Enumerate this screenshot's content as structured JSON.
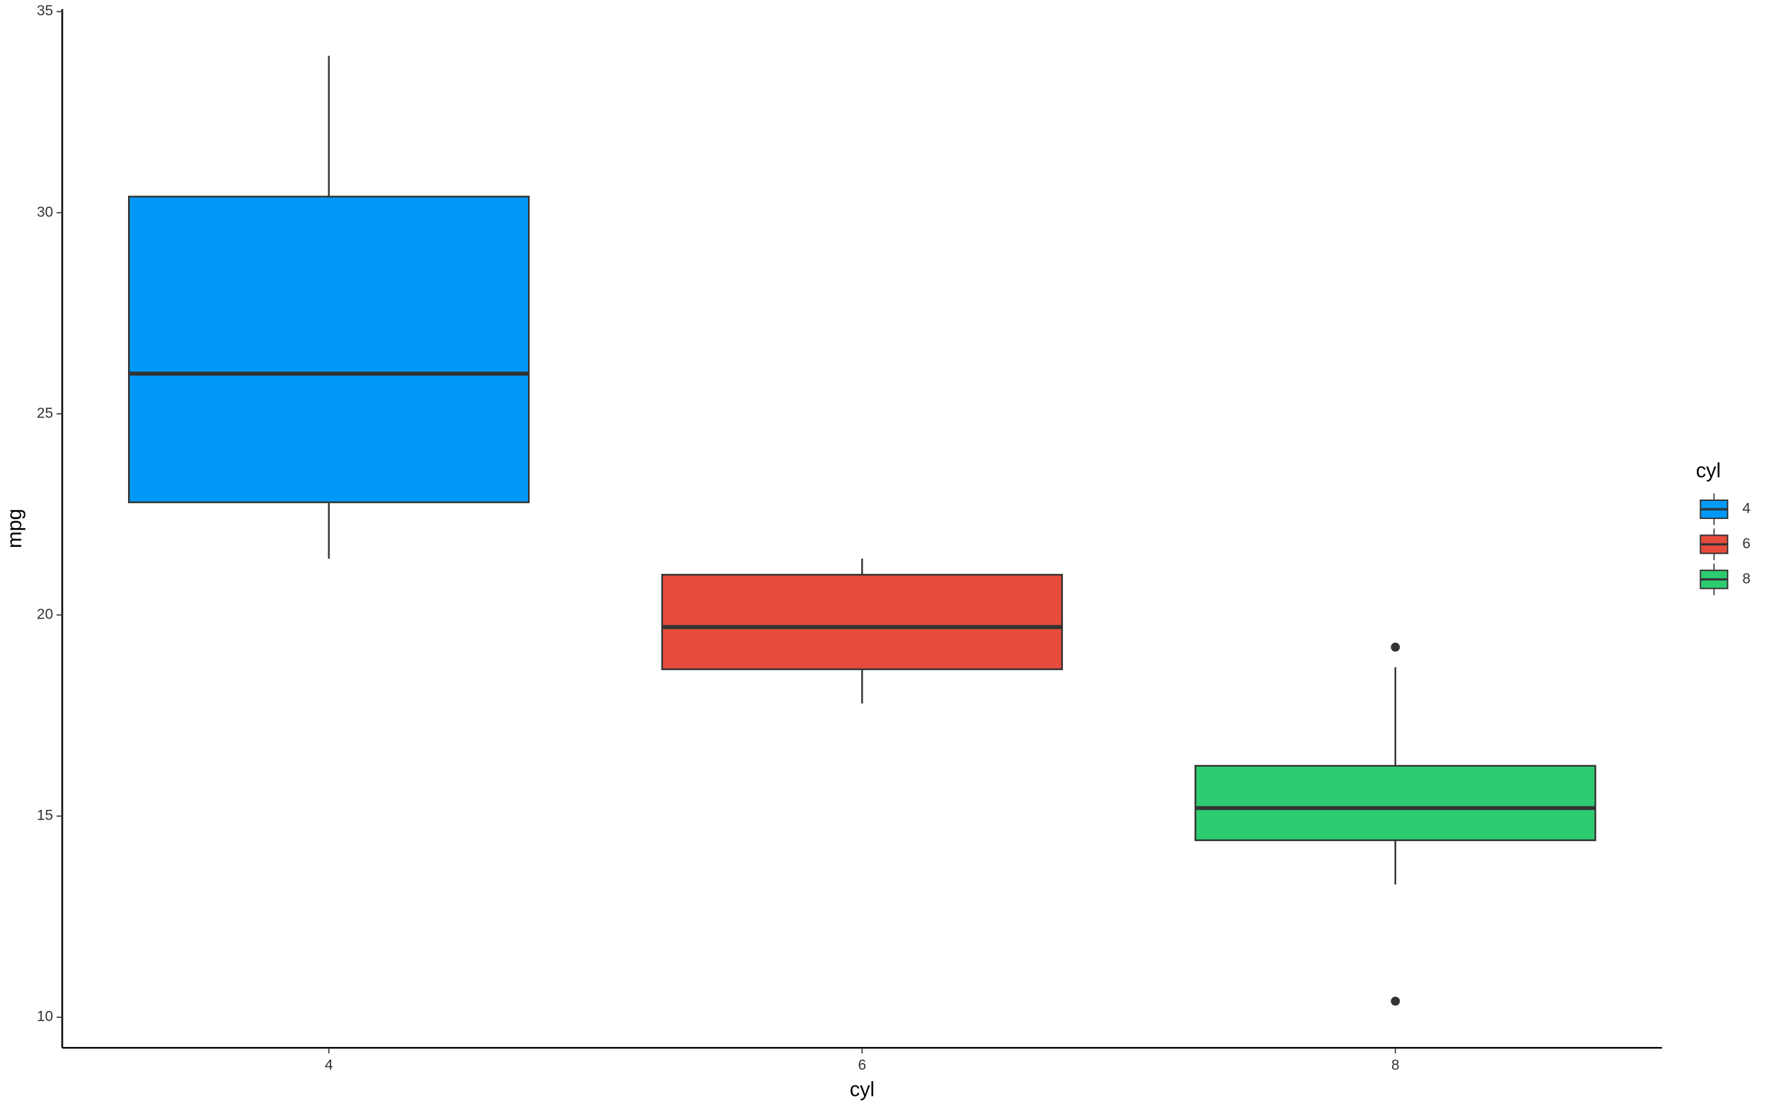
{
  "chart_data": {
    "type": "box",
    "x_label": "cyl",
    "y_label": "mpg",
    "categories": [
      "4",
      "6",
      "8"
    ],
    "legend_title": "cyl",
    "legend": "right",
    "series": [
      {
        "name": "4",
        "color": "#0099f8",
        "min": 21.4,
        "q1": 22.8,
        "median": 26.0,
        "q3": 30.4,
        "max": 33.9,
        "outliers": []
      },
      {
        "name": "6",
        "color": "#e64b3c",
        "min": 17.8,
        "q1": 18.65,
        "median": 19.7,
        "q3": 21.0,
        "max": 21.4,
        "outliers": []
      },
      {
        "name": "8",
        "color": "#2ecc71",
        "min": 13.3,
        "q1": 14.4,
        "median": 15.2,
        "q3": 16.25,
        "max": 18.7,
        "outliers": [
          10.4,
          19.2
        ]
      }
    ],
    "ylim": [
      9.24,
      35.06
    ],
    "yticks": [
      10,
      15,
      20,
      25,
      30,
      35
    ]
  }
}
